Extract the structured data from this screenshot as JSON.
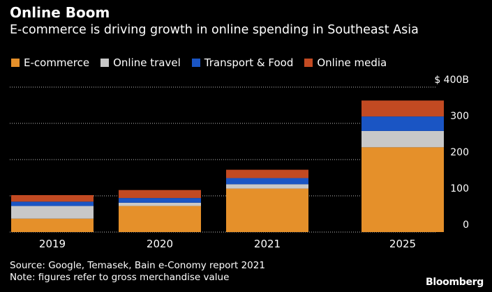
{
  "header": {
    "title": "Online Boom",
    "subtitle": "E-commerce is driving growth in online spending in Southeast Asia"
  },
  "legend": [
    {
      "label": "E-commerce",
      "color": "#e5902a"
    },
    {
      "label": "Online travel",
      "color": "#c8c8c8"
    },
    {
      "label": "Transport & Food",
      "color": "#1a55c4"
    },
    {
      "label": "Online media",
      "color": "#c24a22"
    }
  ],
  "chart_data": {
    "type": "bar",
    "stacked": true,
    "title": "Online Boom",
    "subtitle": "E-commerce is driving growth in online spending in Southeast Asia",
    "categories": [
      "2019",
      "2020",
      "2021",
      "2025"
    ],
    "series": [
      {
        "name": "E-commerce",
        "color": "#e5902a",
        "values": [
          37,
          72,
          120,
          234
        ]
      },
      {
        "name": "Online travel",
        "color": "#c8c8c8",
        "values": [
          35,
          9,
          12,
          45
        ]
      },
      {
        "name": "Transport & Food",
        "color": "#1a55c4",
        "values": [
          12,
          13,
          17,
          40
        ]
      },
      {
        "name": "Online media",
        "color": "#c24a22",
        "values": [
          18,
          22,
          23,
          44
        ]
      }
    ],
    "yticks": [
      0,
      100,
      200,
      300,
      400
    ],
    "ytick_labels": [
      "0",
      "100",
      "200",
      "300",
      "$ 400B"
    ],
    "ylim": [
      0,
      400
    ],
    "xlabel": "",
    "ylabel": "",
    "grid": true
  },
  "footer": {
    "source": "Source: Google, Temasek, Bain e-Conomy report 2021",
    "note": "Note: figures refer to gross merchandise value"
  },
  "brand": "Bloomberg"
}
